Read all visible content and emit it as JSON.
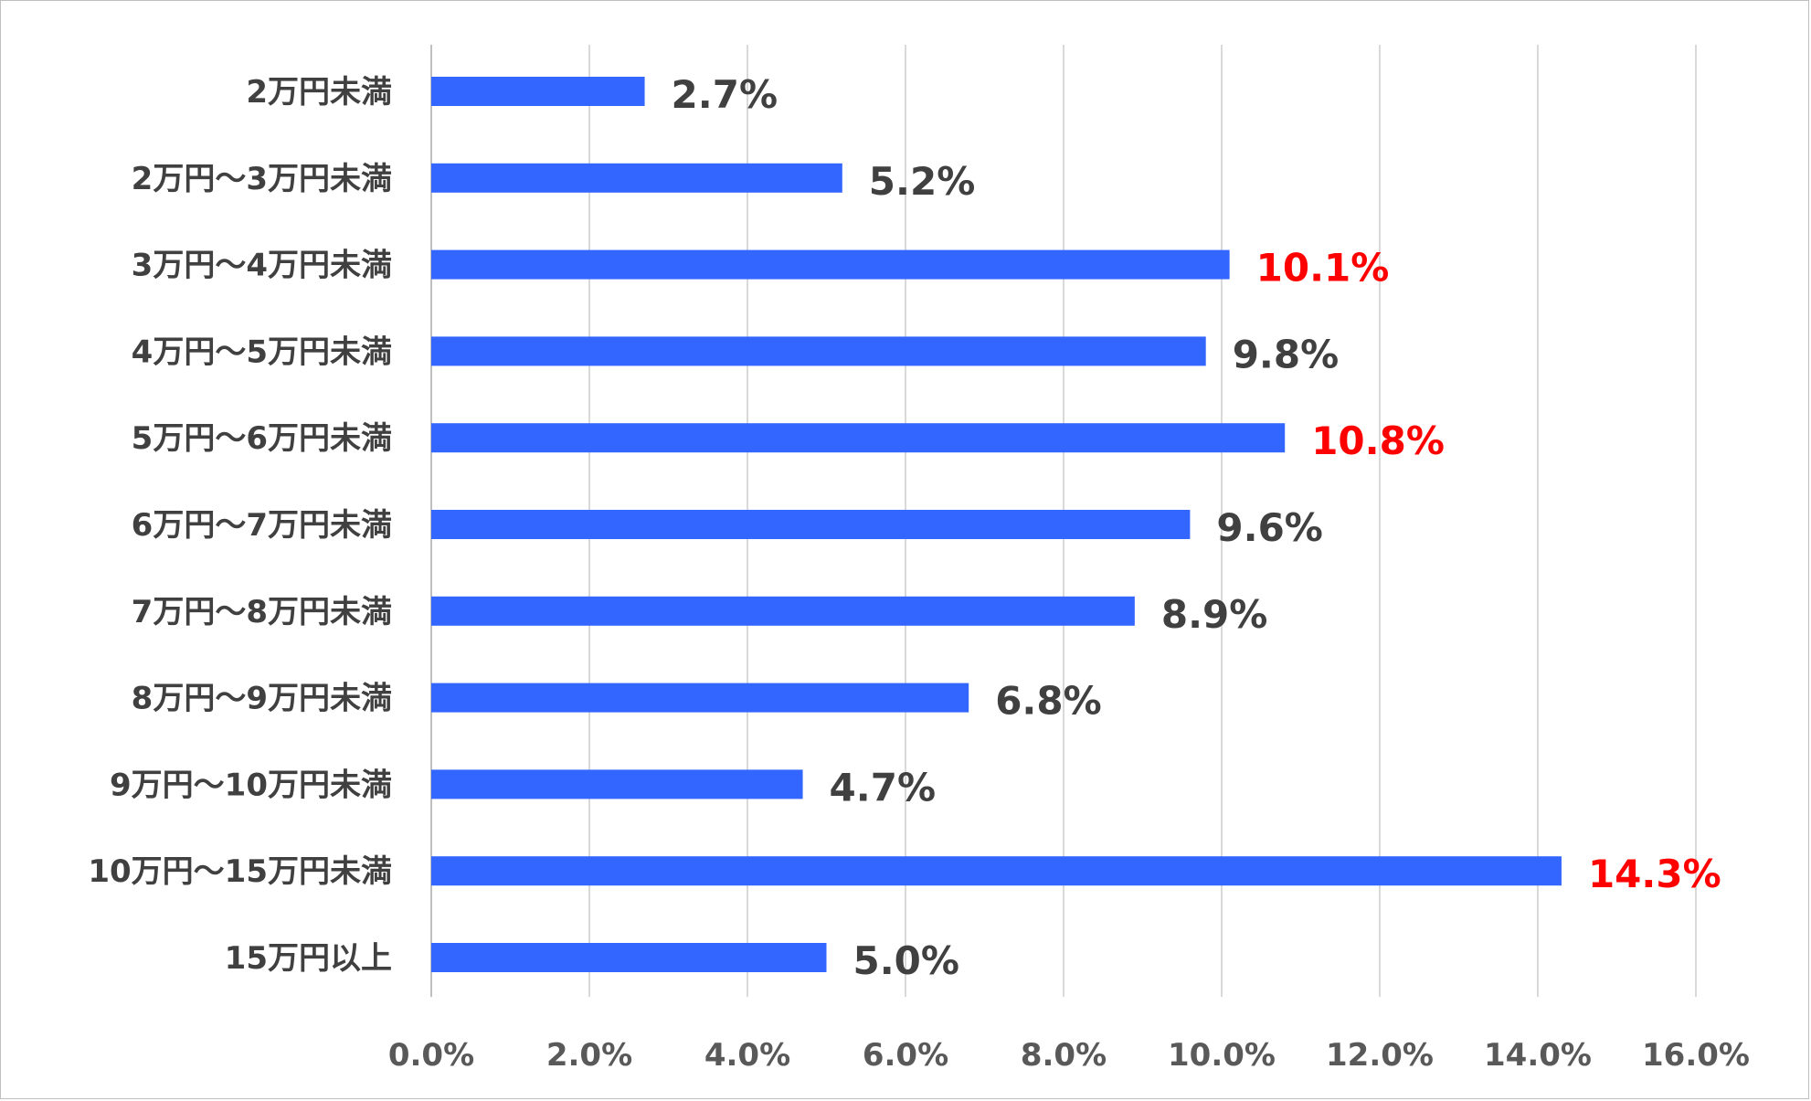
{
  "chart_data": {
    "type": "bar",
    "orientation": "horizontal",
    "title": "",
    "xlabel": "",
    "ylabel": "",
    "xlim": [
      0,
      16
    ],
    "grid": true,
    "legend": "none",
    "categories": [
      "2万円未満",
      "2万円～3万円未満",
      "3万円～4万円未満",
      "4万円～5万円未満",
      "5万円～6万円未満",
      "6万円～7万円未満",
      "7万円～8万円未満",
      "8万円～9万円未満",
      "9万円～10万円未満",
      "10万円～15万円未満",
      "15万円以上"
    ],
    "values": [
      2.7,
      5.2,
      10.1,
      9.8,
      10.8,
      9.6,
      8.9,
      6.8,
      4.7,
      14.3,
      5.0
    ],
    "value_labels": [
      "2.7%",
      "5.2%",
      "10.1%",
      "9.8%",
      "10.8%",
      "9.6%",
      "8.9%",
      "6.8%",
      "4.7%",
      "14.3%",
      "5.0%"
    ],
    "highlighted": [
      false,
      false,
      true,
      false,
      true,
      false,
      false,
      false,
      false,
      true,
      false
    ],
    "ticks": [
      0,
      2,
      4,
      6,
      8,
      10,
      12,
      14,
      16
    ],
    "tick_labels": [
      "0.0%",
      "2.0%",
      "4.0%",
      "6.0%",
      "8.0%",
      "10.0%",
      "12.0%",
      "14.0%",
      "16.0%"
    ],
    "colors": {
      "bar": "#3366ff",
      "label_normal": "#404040",
      "label_highlight": "#ff0000"
    }
  }
}
